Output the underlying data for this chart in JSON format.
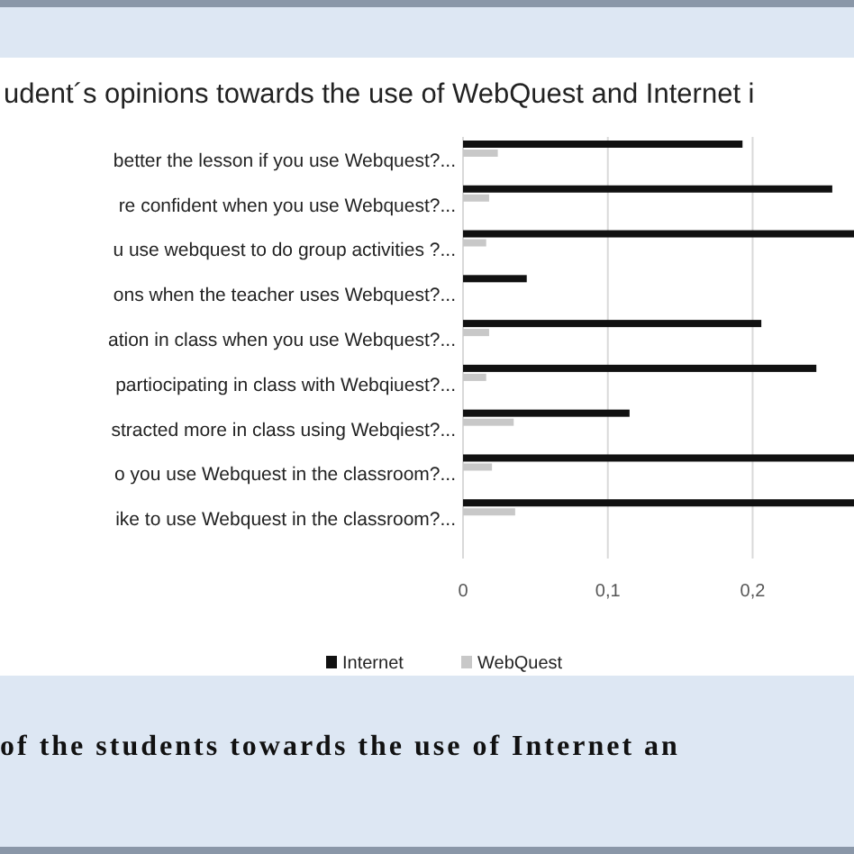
{
  "chart_data": {
    "type": "bar",
    "orientation": "horizontal",
    "title": "udent´s opinions towards the use of WebQuest and Internet i",
    "categories": [
      "better the lesson if you use Webquest?...",
      "re confident when you use Webquest?...",
      "u use webquest to do group activities ?...",
      "ons when the teacher uses Webquest?...",
      "ation in class when you use Webquest?...",
      "partiocipating in class with Webqiuest?...",
      "stracted more in class using Webqiest?...",
      "o you use Webquest in the classroom?...",
      "ike to use Webquest in the classroom?..."
    ],
    "series": [
      {
        "name": "Internet",
        "color": "#111111",
        "values": [
          0.193,
          0.255,
          0.27,
          0.044,
          0.206,
          0.244,
          0.115,
          0.27,
          0.27
        ]
      },
      {
        "name": "WebQuest",
        "color": "#c8c8c8",
        "values": [
          0.024,
          0.018,
          0.016,
          0,
          0.018,
          0.016,
          0.035,
          0.02,
          0.036
        ]
      }
    ],
    "xlim": [
      0,
      0.27
    ],
    "xticks": [
      {
        "value": 0,
        "label": "0"
      },
      {
        "value": 0.1,
        "label": "0,1"
      },
      {
        "value": 0.2,
        "label": "0,2"
      }
    ],
    "grid": "x",
    "legend": "bottom",
    "annotations": [
      "of the students towards the use of Internet an"
    ]
  }
}
